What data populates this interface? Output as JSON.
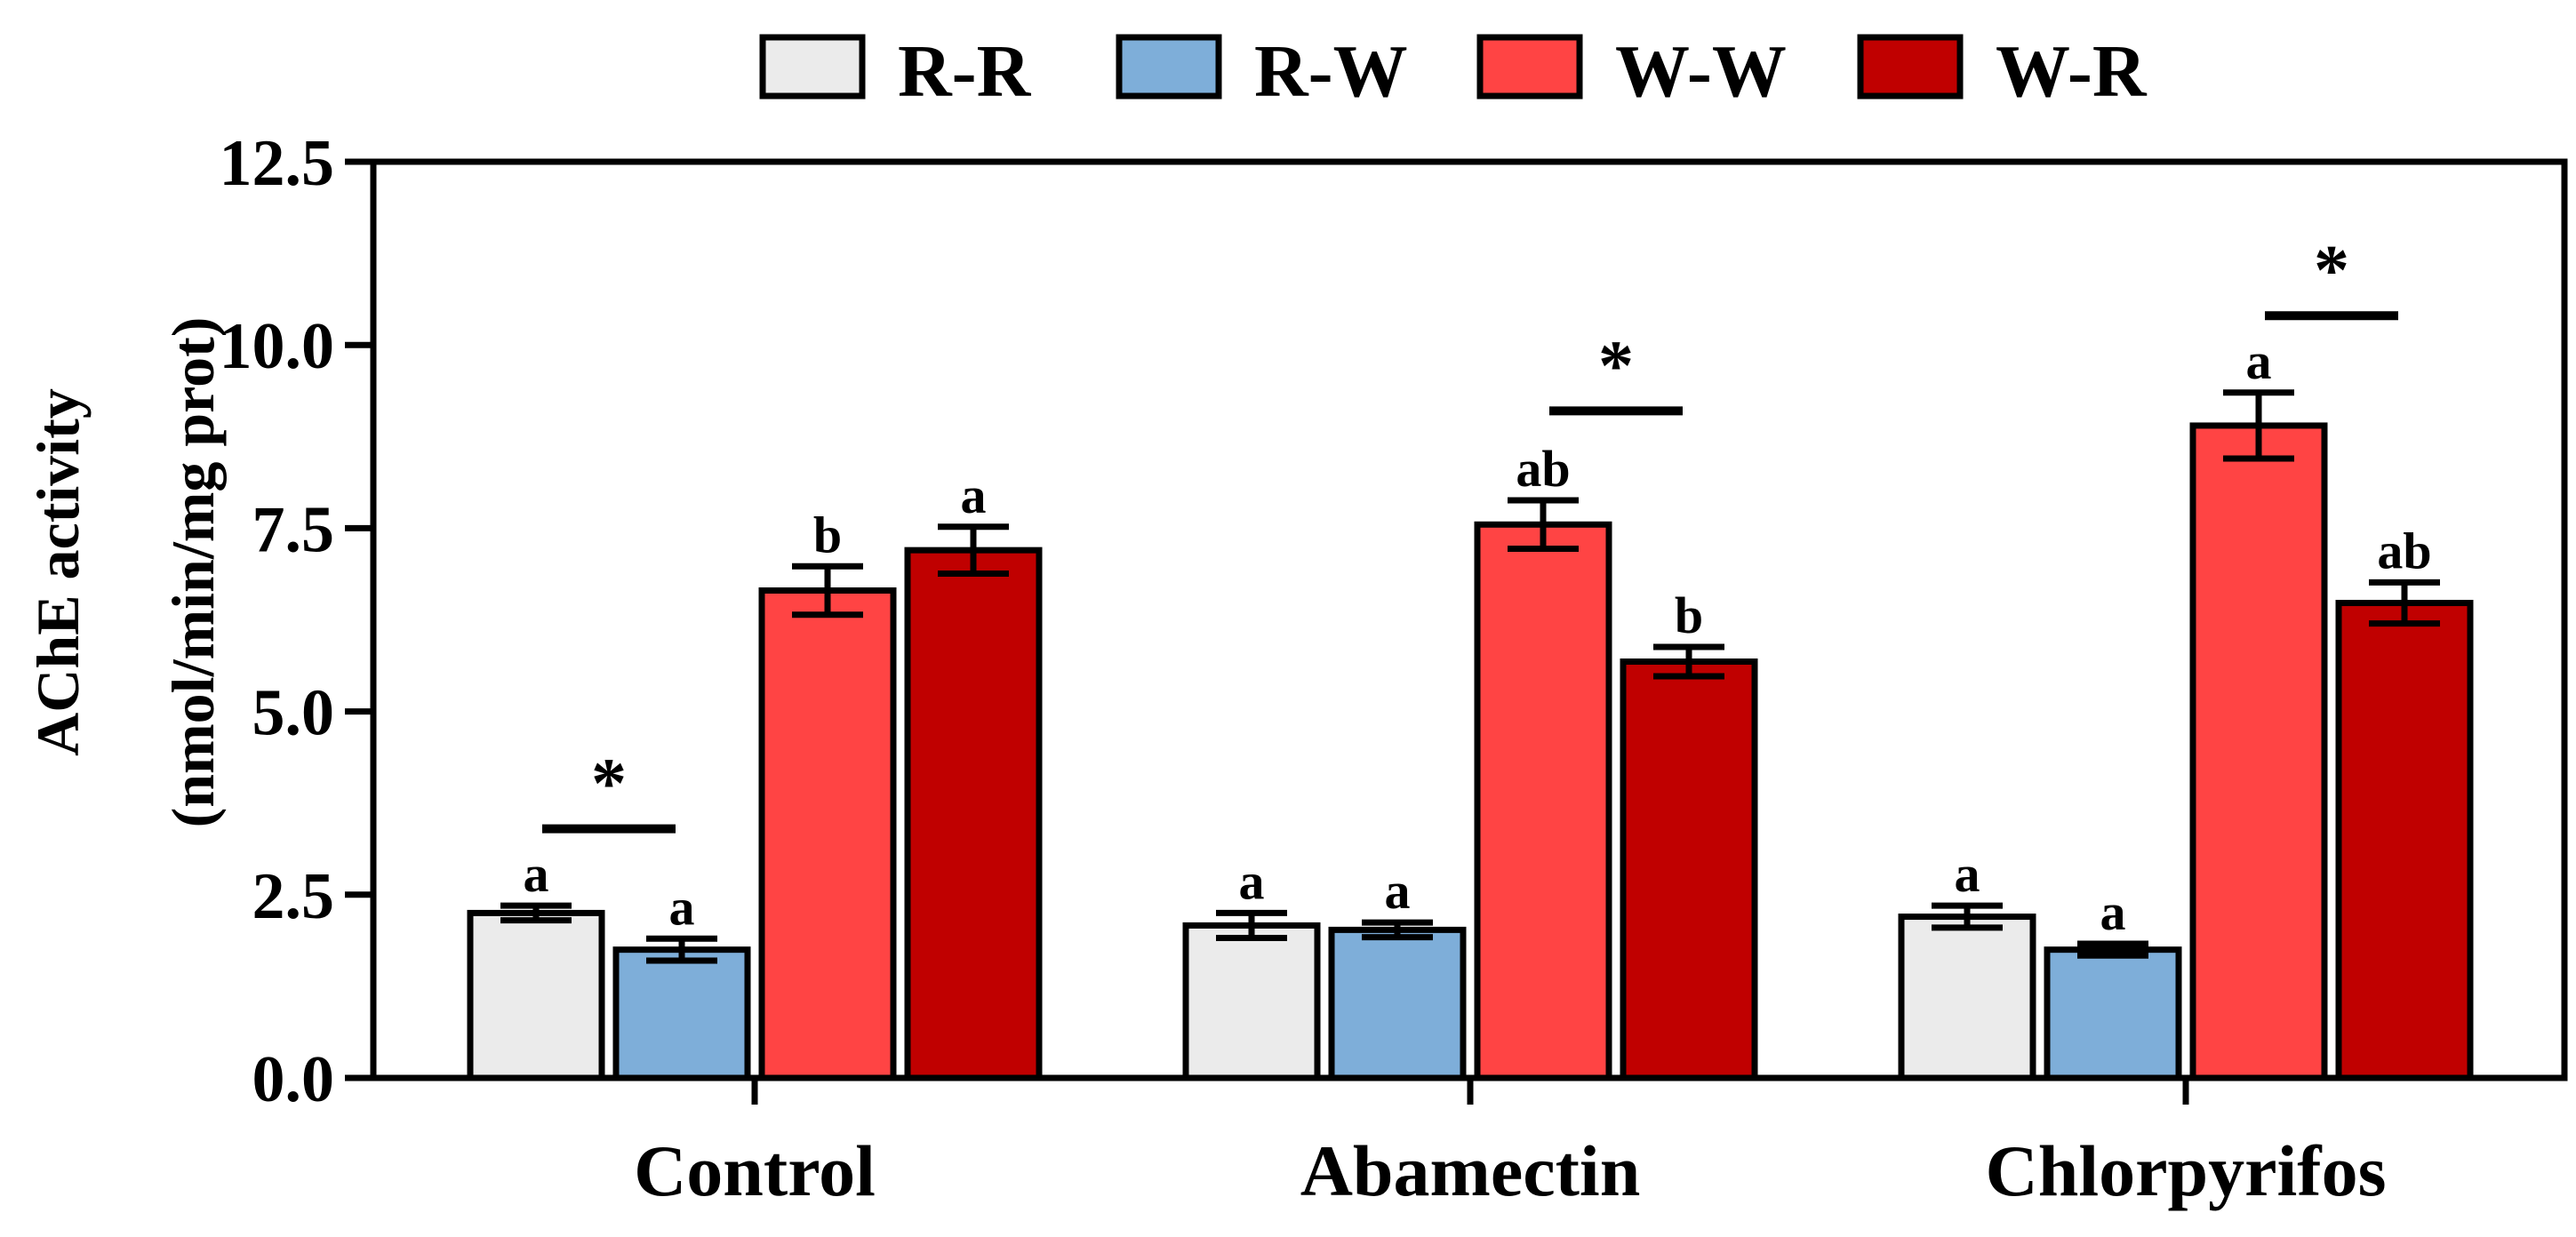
{
  "chart_data": {
    "type": "bar",
    "title": "",
    "xlabel": "",
    "ylabel_lines": [
      "AChE activity",
      "(nmol/min/mg prot)"
    ],
    "ylim": [
      0,
      12.5
    ],
    "yticks": [
      "0.0",
      "2.5",
      "5.0",
      "7.5",
      "10.0",
      "12.5"
    ],
    "categories": [
      "Control",
      "Abamectin",
      "Chlorpyrifos"
    ],
    "legend_position": "top",
    "series": [
      {
        "name": "R-R",
        "color": "#ebebeb",
        "values": [
          2.25,
          2.08,
          2.2
        ],
        "errors": [
          0.1,
          0.17,
          0.15
        ],
        "letters": [
          "a",
          "a",
          "a"
        ]
      },
      {
        "name": "R-W",
        "color": "#7eaed9",
        "values": [
          1.75,
          2.02,
          1.75
        ],
        "errors": [
          0.15,
          0.1,
          0.08
        ],
        "letters": [
          "a",
          "a",
          "a"
        ]
      },
      {
        "name": "W-W",
        "color": "#ff4444",
        "values": [
          6.65,
          7.55,
          8.9
        ],
        "errors": [
          0.33,
          0.33,
          0.45
        ],
        "letters": [
          "b",
          "ab",
          "a"
        ]
      },
      {
        "name": "W-R",
        "color": "#c00000",
        "values": [
          7.2,
          5.68,
          6.48
        ],
        "errors": [
          0.32,
          0.2,
          0.28
        ],
        "letters": [
          "a",
          "b",
          "ab"
        ]
      }
    ],
    "significance": [
      {
        "category": 0,
        "from_series": 0,
        "to_series": 1,
        "y": 3.4,
        "label": "*"
      },
      {
        "category": 1,
        "from_series": 2,
        "to_series": 3,
        "y": 9.1,
        "label": "*"
      },
      {
        "category": 2,
        "from_series": 2,
        "to_series": 3,
        "y": 10.4,
        "label": "*"
      }
    ]
  }
}
